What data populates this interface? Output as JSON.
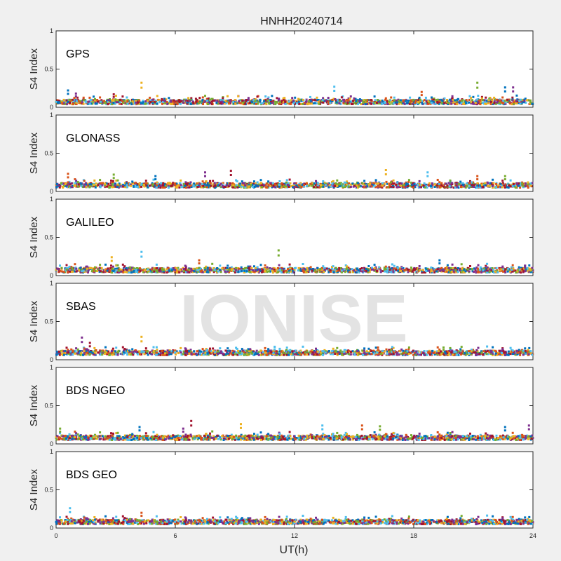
{
  "chart_data": {
    "type": "scatter",
    "title": "HNHH20240714",
    "xlabel": "UT(h)",
    "ylabel": "S4 Index",
    "xlim": [
      0,
      24
    ],
    "ylim": [
      0,
      1
    ],
    "xticks": [
      0,
      6,
      12,
      18,
      24
    ],
    "xtick_labels": [
      "0",
      "6",
      "12",
      "18",
      "24"
    ],
    "yticks": [
      0,
      0.5,
      1
    ],
    "ytick_labels": [
      "0",
      "0.5",
      "1"
    ],
    "grid": false,
    "series_colors": [
      "#0072BD",
      "#D95319",
      "#EDB120",
      "#7E2F8E",
      "#77AC30",
      "#4DBEEE",
      "#A2142F"
    ],
    "watermark": "IONISE",
    "panels": [
      {
        "label": "GPS",
        "baseline": 0.07,
        "peaks": [
          {
            "x": 0.6,
            "y": 0.22
          },
          {
            "x": 1.0,
            "y": 0.18
          },
          {
            "x": 2.9,
            "y": 0.17
          },
          {
            "x": 4.3,
            "y": 0.32
          },
          {
            "x": 14.0,
            "y": 0.27
          },
          {
            "x": 18.4,
            "y": 0.2
          },
          {
            "x": 21.2,
            "y": 0.32
          },
          {
            "x": 22.6,
            "y": 0.26
          },
          {
            "x": 23.0,
            "y": 0.26
          }
        ]
      },
      {
        "label": "GLONASS",
        "baseline": 0.08,
        "peaks": [
          {
            "x": 0.6,
            "y": 0.23
          },
          {
            "x": 2.9,
            "y": 0.22
          },
          {
            "x": 5.0,
            "y": 0.2
          },
          {
            "x": 7.5,
            "y": 0.25
          },
          {
            "x": 8.8,
            "y": 0.27
          },
          {
            "x": 16.6,
            "y": 0.28
          },
          {
            "x": 18.7,
            "y": 0.25
          },
          {
            "x": 21.2,
            "y": 0.2
          },
          {
            "x": 22.6,
            "y": 0.2
          }
        ]
      },
      {
        "label": "GALILEO",
        "baseline": 0.07,
        "peaks": [
          {
            "x": 2.8,
            "y": 0.24
          },
          {
            "x": 4.3,
            "y": 0.31
          },
          {
            "x": 7.2,
            "y": 0.2
          },
          {
            "x": 11.2,
            "y": 0.33
          },
          {
            "x": 19.3,
            "y": 0.2
          },
          {
            "x": 23.6,
            "y": 0.13
          }
        ]
      },
      {
        "label": "SBAS",
        "baseline": 0.09,
        "peaks": [
          {
            "x": 1.3,
            "y": 0.29
          },
          {
            "x": 1.7,
            "y": 0.22
          },
          {
            "x": 4.3,
            "y": 0.3
          },
          {
            "x": 11.0,
            "y": 0.17
          },
          {
            "x": 16.2,
            "y": 0.16
          },
          {
            "x": 19.5,
            "y": 0.16
          }
        ]
      },
      {
        "label": "BDS NGEO",
        "baseline": 0.08,
        "peaks": [
          {
            "x": 0.2,
            "y": 0.2
          },
          {
            "x": 4.2,
            "y": 0.22
          },
          {
            "x": 6.4,
            "y": 0.2
          },
          {
            "x": 6.8,
            "y": 0.3
          },
          {
            "x": 9.3,
            "y": 0.26
          },
          {
            "x": 13.4,
            "y": 0.24
          },
          {
            "x": 15.4,
            "y": 0.24
          },
          {
            "x": 16.3,
            "y": 0.23
          },
          {
            "x": 22.6,
            "y": 0.22
          },
          {
            "x": 23.8,
            "y": 0.24
          }
        ]
      },
      {
        "label": "BDS GEO",
        "baseline": 0.08,
        "peaks": [
          {
            "x": 0.7,
            "y": 0.26
          },
          {
            "x": 4.3,
            "y": 0.2
          }
        ]
      }
    ]
  }
}
